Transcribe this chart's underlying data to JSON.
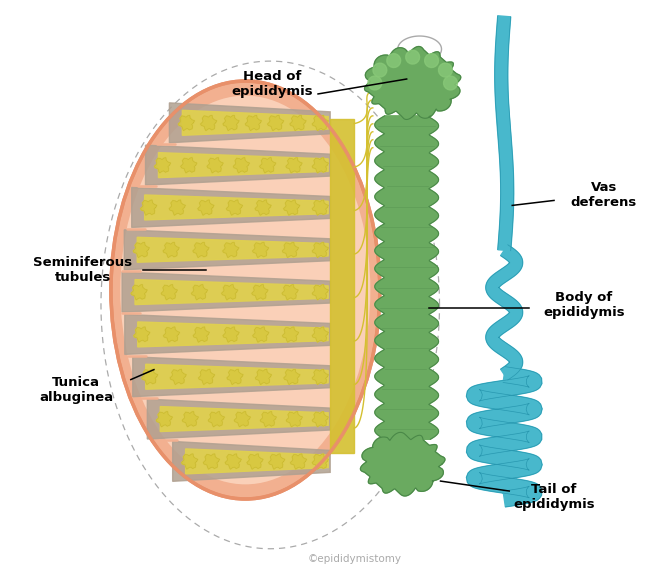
{
  "bg_color": "#ffffff",
  "labels": {
    "head_of_epididymis": "Head of\nepididymis",
    "seminiferous_tubules": "Seminiferous\ntubules",
    "tunica_albuginea": "Tunica\nalbuginea",
    "vas_deferens": "Vas\ndeferens",
    "body_of_epididymis": "Body of\nepididymis",
    "tail_of_epididymis": "Tail of\nepididymis"
  },
  "colors": {
    "tunica_outer": "#e8906a",
    "tunica_fill": "#f2b090",
    "tunica_inner_fill": "#fad0b8",
    "septum_gray": "#b0a090",
    "septum_dark": "#888070",
    "lobule_yellow": "#d8c840",
    "lobule_yellow_fill": "#e0d050",
    "coil_yellow": "#c8b830",
    "rete_yellow": "#c8b820",
    "rete_fill": "#d4c030",
    "epi_green": "#6aaa60",
    "epi_green_dark": "#4a8848",
    "epi_green_light": "#88c878",
    "vas_blue": "#48b8cc",
    "vas_blue_dark": "#2898b0",
    "vas_blue_light": "#80d0e0",
    "dashed_gray": "#aaaaaa",
    "label_line": "#111111",
    "watermark_gray": "#aaaaaa"
  },
  "watermark": "©epididymistomy"
}
